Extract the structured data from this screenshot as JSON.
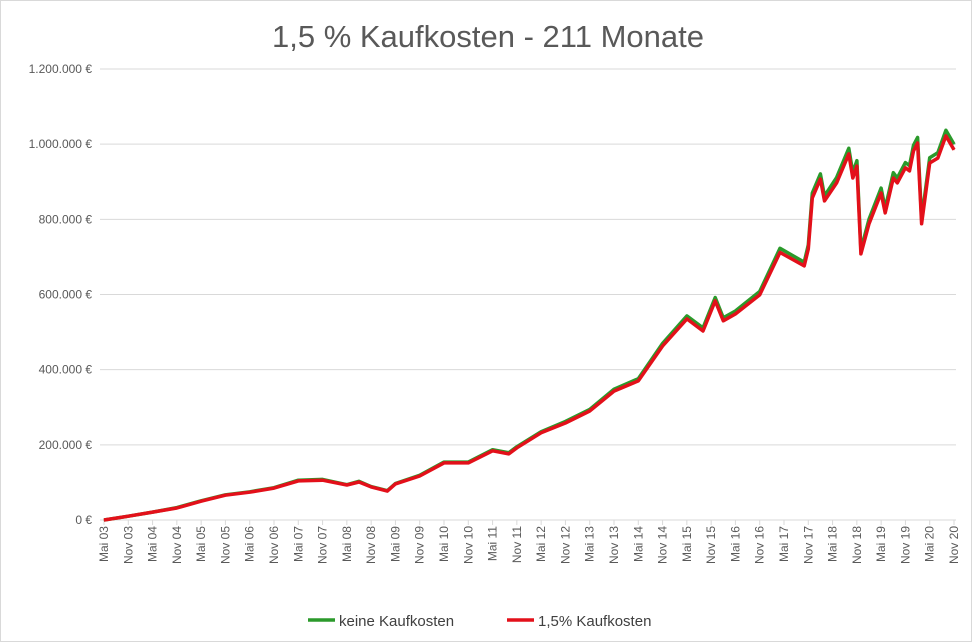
{
  "chart_data": {
    "type": "line",
    "title": "1,5 % Kaufkosten - 211 Monate",
    "xlabel": "",
    "ylabel": "",
    "ylim": [
      0,
      1200000
    ],
    "grid": true,
    "legend": "bottom",
    "yticks": [
      "0 €",
      "200.000 €",
      "400.000 €",
      "600.000 €",
      "800.000 €",
      "1.000.000 €",
      "1.200.000 €"
    ],
    "ytick_values": [
      0,
      200000,
      400000,
      600000,
      800000,
      1000000,
      1200000
    ],
    "xtick_labels": [
      "Mai 03",
      "Nov 03",
      "Mai 04",
      "Nov 04",
      "Mai 05",
      "Nov 05",
      "Mai 06",
      "Nov 06",
      "Mai 07",
      "Nov 07",
      "Mai 08",
      "Nov 08",
      "Mai 09",
      "Nov 09",
      "Mai 10",
      "Nov 10",
      "Mai 11",
      "Nov 11",
      "Mai 12",
      "Nov 12",
      "Mai 13",
      "Nov 13",
      "Mai 14",
      "Nov 14",
      "Mai 15",
      "Nov 15",
      "Mai 16",
      "Nov 16",
      "Mai 17",
      "Nov 17",
      "Mai 18",
      "Nov 18",
      "Mai 19",
      "Nov 19",
      "Mai 20",
      "Nov 20"
    ],
    "x": [
      "2003-05",
      "2003-11",
      "2004-05",
      "2004-11",
      "2005-05",
      "2005-11",
      "2006-05",
      "2006-11",
      "2007-05",
      "2007-11",
      "2008-05",
      "2008-08",
      "2008-11",
      "2009-03",
      "2009-05",
      "2009-11",
      "2010-05",
      "2010-11",
      "2011-05",
      "2011-09",
      "2011-11",
      "2012-05",
      "2012-11",
      "2013-05",
      "2013-11",
      "2014-05",
      "2014-11",
      "2015-05",
      "2015-09",
      "2015-12",
      "2016-02",
      "2016-05",
      "2016-11",
      "2017-04",
      "2017-10",
      "2017-11",
      "2017-12",
      "2018-02",
      "2018-03",
      "2018-06",
      "2018-09",
      "2018-10",
      "2018-11",
      "2018-12",
      "2019-02",
      "2019-05",
      "2019-06",
      "2019-08",
      "2019-09",
      "2019-11",
      "2019-12",
      "2020-01",
      "2020-02",
      "2020-03",
      "2020-05",
      "2020-07",
      "2020-09",
      "2020-11"
    ],
    "series": [
      {
        "name": "keine Kaufkosten",
        "color": "#2b9a2b",
        "values": [
          0,
          10000,
          21000,
          33000,
          51000,
          67000,
          75000,
          86000,
          106000,
          108000,
          94000,
          103000,
          89000,
          78000,
          97000,
          119000,
          154000,
          154000,
          187000,
          179000,
          195000,
          235000,
          262000,
          294000,
          348000,
          376000,
          470000,
          543000,
          511000,
          592000,
          538000,
          556000,
          608000,
          723000,
          686000,
          732000,
          870000,
          921000,
          862000,
          911000,
          989000,
          924000,
          956000,
          719000,
          800000,
          883000,
          829000,
          924000,
          910000,
          951000,
          943000,
          997000,
          1018000,
          800000,
          964000,
          977000,
          1037000,
          1000000
        ]
      },
      {
        "name": "1,5% Kaufkosten",
        "color": "#e3101a",
        "values": [
          0,
          10000,
          21000,
          32000,
          50000,
          66000,
          74000,
          85000,
          104000,
          106000,
          93000,
          101000,
          88000,
          77000,
          96000,
          117000,
          152000,
          152000,
          184000,
          176000,
          192000,
          232000,
          258000,
          290000,
          343000,
          370000,
          463000,
          535000,
          503000,
          583000,
          530000,
          548000,
          599000,
          712000,
          676000,
          721000,
          857000,
          907000,
          849000,
          897000,
          974000,
          910000,
          942000,
          708000,
          788000,
          870000,
          817000,
          910000,
          897000,
          937000,
          929000,
          982000,
          1003000,
          788000,
          950000,
          963000,
          1022000,
          985000
        ]
      }
    ]
  }
}
